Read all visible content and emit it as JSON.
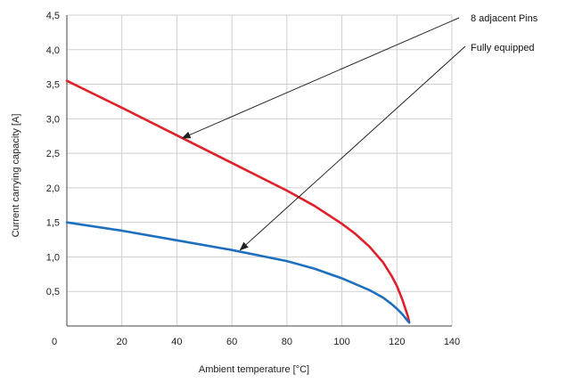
{
  "chart_data": {
    "type": "line",
    "xlabel": "Ambient temperature [°C]",
    "ylabel": "Current carrying capacity [A]",
    "xlim": [
      0,
      140
    ],
    "ylim": [
      0,
      4.5
    ],
    "xticks": [
      0,
      20,
      40,
      60,
      80,
      100,
      120,
      140
    ],
    "xtick_labels": [
      "0",
      "20",
      "40",
      "60",
      "80",
      "100",
      "120",
      "140"
    ],
    "yticks": [
      0.5,
      1.0,
      1.5,
      2.0,
      2.5,
      3.0,
      3.5,
      4.0,
      4.5
    ],
    "ytick_labels": [
      "0,5",
      "1,0",
      "1,5",
      "2,0",
      "2,5",
      "3,0",
      "3,5",
      "4,0",
      "4,5"
    ],
    "grid": true,
    "series": [
      {
        "color": "#e0202a",
        "x": [
          0,
          20,
          40,
          60,
          80,
          90,
          100,
          105,
          110,
          115,
          118,
          120,
          122,
          123,
          124,
          124.5
        ],
        "y": [
          3.55,
          3.16,
          2.76,
          2.36,
          1.96,
          1.74,
          1.48,
          1.33,
          1.15,
          0.92,
          0.73,
          0.58,
          0.38,
          0.26,
          0.14,
          0.05
        ]
      },
      {
        "color": "#1f6fbf",
        "x": [
          0,
          20,
          40,
          60,
          80,
          90,
          100,
          110,
          115,
          118,
          120,
          122,
          123,
          124,
          124.5
        ],
        "y": [
          1.5,
          1.38,
          1.24,
          1.1,
          0.94,
          0.83,
          0.69,
          0.52,
          0.41,
          0.32,
          0.25,
          0.17,
          0.12,
          0.07,
          0.05
        ]
      }
    ],
    "annotations": [
      {
        "text": "8 adjacent Pins",
        "target": {
          "x": 42,
          "y": 2.72
        }
      },
      {
        "text": "Fully equipped",
        "target": {
          "x": 63,
          "y": 1.1
        }
      }
    ]
  }
}
